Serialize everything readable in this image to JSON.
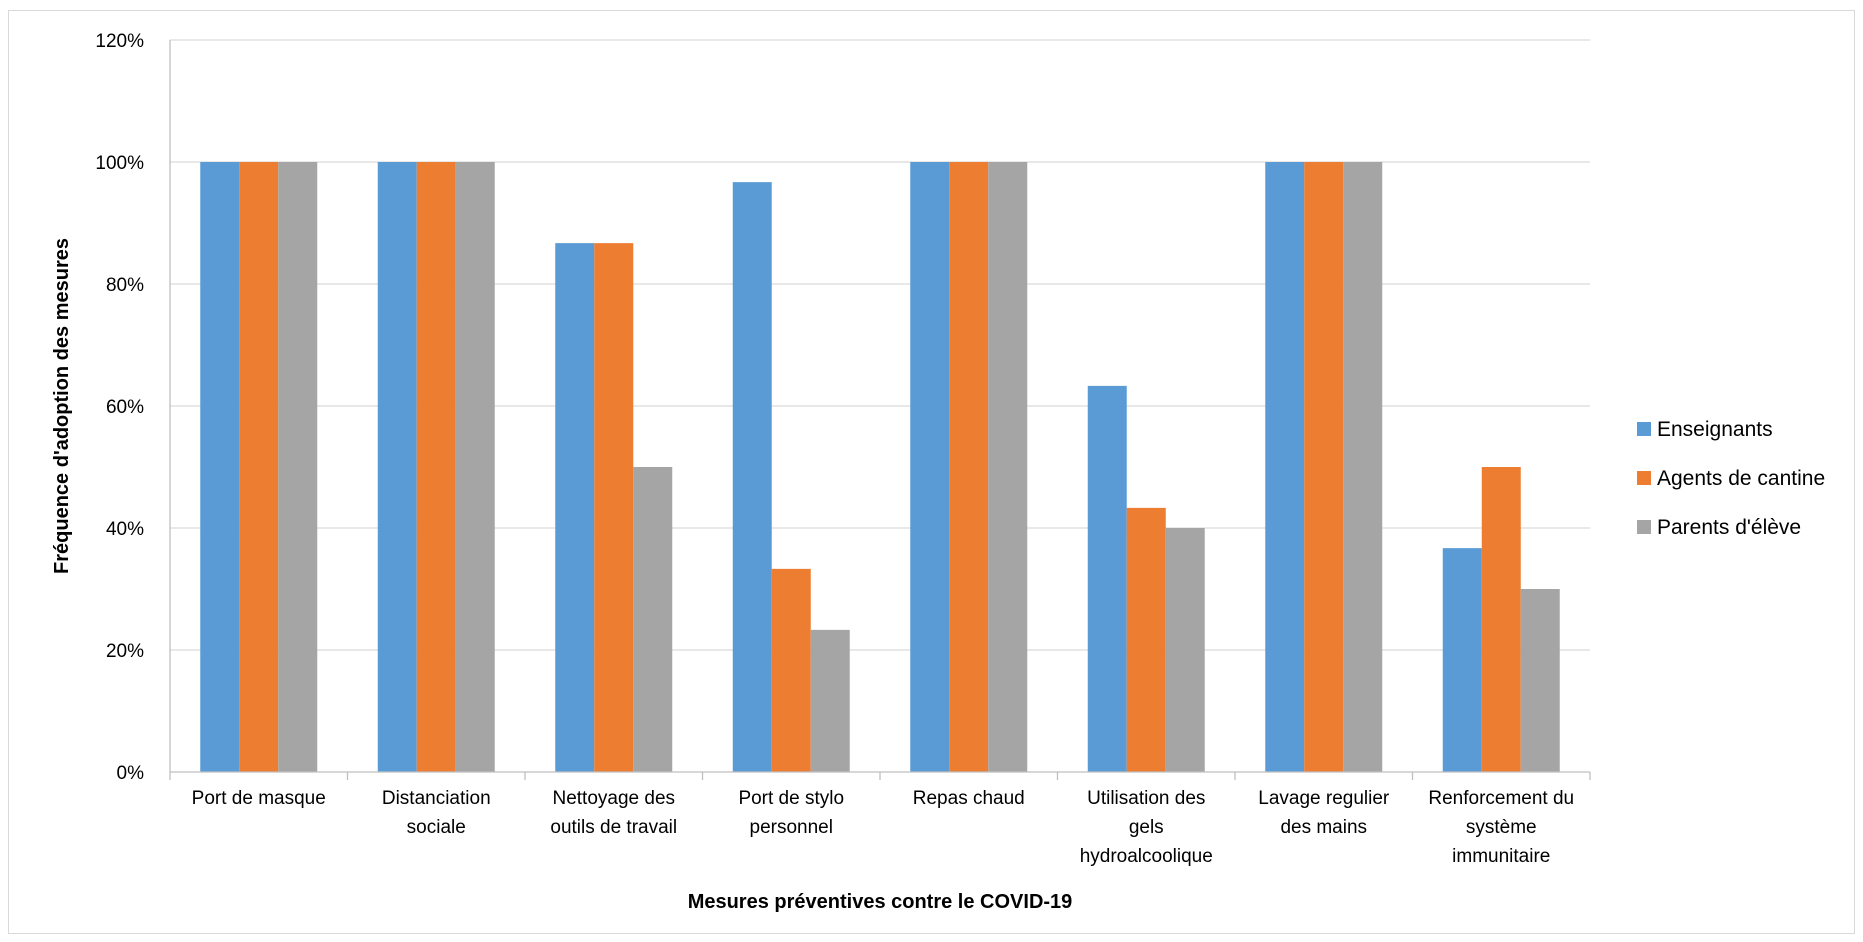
{
  "chart_data": {
    "type": "bar",
    "title": "",
    "xlabel": "Mesures préventives contre le COVID-19",
    "ylabel": "Fréquence d'adoption des mesures",
    "ylim": [
      0,
      120
    ],
    "y_unit": "%",
    "y_ticks": [
      "0%",
      "20%",
      "40%",
      "60%",
      "80%",
      "100%",
      "120%"
    ],
    "grid": true,
    "legend_position": "right",
    "categories": [
      [
        "Port de masque"
      ],
      [
        "Distanciation",
        "sociale"
      ],
      [
        "Nettoyage des",
        "outils de travail"
      ],
      [
        "Port de stylo",
        "personnel"
      ],
      [
        "Repas chaud"
      ],
      [
        "Utilisation des",
        "gels",
        "hydroalcoolique"
      ],
      [
        "Lavage regulier",
        "des mains"
      ],
      [
        "Renforcement du",
        "système",
        "immunitaire"
      ]
    ],
    "series": [
      {
        "name": "Enseignants",
        "color": "#5b9bd5",
        "values": [
          100,
          100,
          86.7,
          96.7,
          100,
          63.3,
          100,
          36.7
        ]
      },
      {
        "name": "Agents de cantine",
        "color": "#ed7d31",
        "values": [
          100,
          100,
          86.7,
          33.3,
          100,
          43.3,
          100,
          50
        ]
      },
      {
        "name": "Parents d'élève",
        "color": "#a5a5a5",
        "values": [
          100,
          100,
          50,
          23.3,
          100,
          40,
          100,
          30
        ]
      }
    ]
  }
}
